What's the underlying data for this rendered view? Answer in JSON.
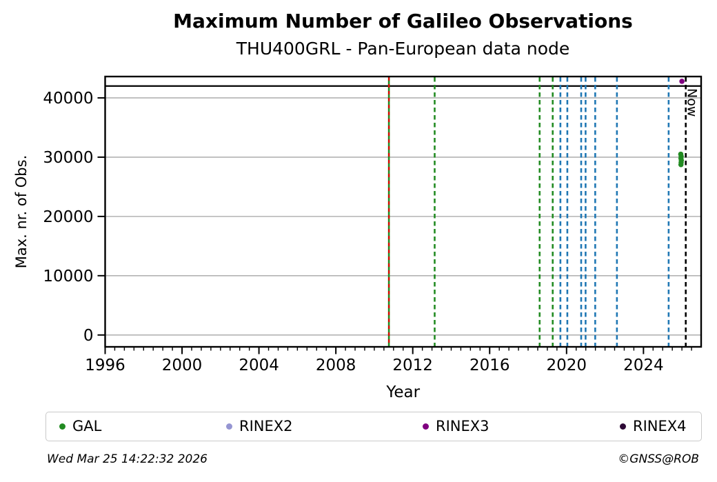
{
  "header": {
    "title": "Maximum Number of Galileo Observations",
    "subtitle": "THU400GRL - Pan-European data node"
  },
  "chart_data": {
    "type": "scatter",
    "title": "Maximum Number of Galileo Observations",
    "subtitle": "THU400GRL - Pan-European data node",
    "xlabel": "Year",
    "ylabel": "Max. nr. of Obs.",
    "xlim": [
      1996,
      2027
    ],
    "ylim": [
      -2000,
      43600
    ],
    "xticks": [
      1996,
      2000,
      2004,
      2008,
      2012,
      2016,
      2020,
      2024
    ],
    "yticks": [
      0,
      10000,
      20000,
      30000,
      40000
    ],
    "x_minor_step": 0.5,
    "grid": "horizontal",
    "grid_color": "#b3b3b3",
    "hlines": [
      {
        "y": 42000,
        "color": "#000000",
        "style": "solid"
      }
    ],
    "vlines": [
      {
        "x": 2010.76,
        "color": "#228B22",
        "style": "solid",
        "overlay_color": "#e00000",
        "overlay_style": "dashed"
      },
      {
        "x": 2013.14,
        "color": "#228B22",
        "style": "dashed"
      },
      {
        "x": 2018.6,
        "color": "#228B22",
        "style": "dashed"
      },
      {
        "x": 2019.28,
        "color": "#228B22",
        "style": "dashed"
      },
      {
        "x": 2019.68,
        "color": "#1f77b4",
        "style": "dashed"
      },
      {
        "x": 2020.04,
        "color": "#1f77b4",
        "style": "dashed"
      },
      {
        "x": 2020.76,
        "color": "#1f77b4",
        "style": "dashed"
      },
      {
        "x": 2020.99,
        "color": "#1f77b4",
        "style": "dashed"
      },
      {
        "x": 2021.49,
        "color": "#1f77b4",
        "style": "dashed"
      },
      {
        "x": 2022.62,
        "color": "#1f77b4",
        "style": "dashed"
      },
      {
        "x": 2025.31,
        "color": "#1f77b4",
        "style": "dashed"
      },
      {
        "x": 2026.2,
        "color": "#000000",
        "style": "dashed",
        "label": "Now"
      }
    ],
    "series": [
      {
        "name": "GAL",
        "color": "#228B22",
        "points": [
          [
            2025.94,
            30500
          ],
          [
            2025.96,
            30150
          ],
          [
            2025.95,
            29800
          ],
          [
            2025.97,
            29450
          ],
          [
            2025.96,
            29100
          ],
          [
            2025.95,
            28750
          ]
        ]
      },
      {
        "name": "RINEX2",
        "color": "#9595d2",
        "points": []
      },
      {
        "name": "RINEX3",
        "color": "#800080",
        "points": [
          [
            2026.0,
            42800
          ]
        ]
      },
      {
        "name": "RINEX4",
        "color": "#2d0936",
        "points": []
      }
    ],
    "legend_position": "bottom"
  },
  "legend": {
    "items": [
      {
        "label": "GAL",
        "color": "#228B22"
      },
      {
        "label": "RINEX2",
        "color": "#9595d2"
      },
      {
        "label": "RINEX3",
        "color": "#800080"
      },
      {
        "label": "RINEX4",
        "color": "#2d0936"
      }
    ]
  },
  "footer": {
    "timestamp": "Wed Mar 25 14:22:32 2026",
    "credit": "©GNSS@ROB"
  }
}
